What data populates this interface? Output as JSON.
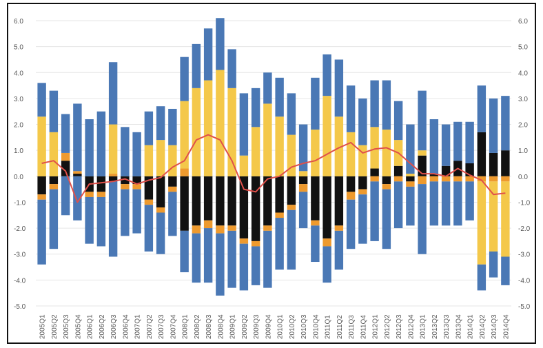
{
  "chart_data": {
    "type": "bar",
    "stacked": true,
    "categories": [
      "2005Q1",
      "2005Q2",
      "2005Q3",
      "2005Q4",
      "2006Q1",
      "2006Q2",
      "2006Q3",
      "2006Q4",
      "2007Q1",
      "2007Q2",
      "2007Q3",
      "2007Q4",
      "2008Q1",
      "2008Q2",
      "2008Q3",
      "2008Q4",
      "2009Q1",
      "2009Q2",
      "2009Q3",
      "2009Q4",
      "2010Q1",
      "2010Q2",
      "2010Q3",
      "2010Q4",
      "2011Q1",
      "2011Q2",
      "2011Q3",
      "2011Q4",
      "2012Q1",
      "2012Q2",
      "2012Q3",
      "2012Q4",
      "2013Q1",
      "2013Q2",
      "2013Q3",
      "2013Q4",
      "2014Q1",
      "2014Q2",
      "2014Q3",
      "2014Q4"
    ],
    "ylim": [
      -5.0,
      6.0
    ],
    "yticks": [
      "6.0",
      "5.0",
      "4.0",
      "3.0",
      "2.0",
      "1.0",
      "0.0",
      "-1.0",
      "-2.0",
      "-3.0",
      "-4.0",
      "-5.0"
    ],
    "ytick_values": [
      6,
      5,
      4,
      3,
      2,
      1,
      0,
      -1,
      -2,
      -3,
      -4,
      -5
    ],
    "right_axis_ticks": [
      "6.0",
      "5.0",
      "4.0",
      "3.0",
      "2.0",
      "1.0",
      "0.0",
      "-1.0",
      "-2.0",
      "-3.0",
      "-4.0",
      "-5.0"
    ],
    "grid": true,
    "bar_series": [
      {
        "color": "#111111",
        "values": [
          -0.7,
          -0.3,
          0.6,
          0.1,
          -0.6,
          -0.6,
          -0.2,
          -0.3,
          -0.3,
          -0.9,
          -1.2,
          -0.4,
          -2.1,
          -1.9,
          -1.7,
          -1.9,
          -1.9,
          -2.4,
          -2.5,
          -1.9,
          -1.4,
          -1.1,
          -0.3,
          -1.7,
          -2.4,
          -1.9,
          -0.6,
          -0.5,
          0.3,
          -0.3,
          0.4,
          -0.2,
          0.8,
          0.1,
          0.4,
          0.6,
          0.5,
          1.7,
          0.9,
          1.0
        ]
      },
      {
        "color": "#ee9a2e",
        "values": [
          -0.2,
          -0.2,
          0.3,
          0.1,
          -0.2,
          -0.2,
          0.1,
          -0.2,
          -0.2,
          -0.2,
          -0.2,
          -0.2,
          0.3,
          -0.3,
          -0.3,
          -0.3,
          -0.2,
          -0.2,
          -0.2,
          -0.2,
          -0.2,
          -0.2,
          -0.3,
          -0.2,
          -0.3,
          -0.2,
          -0.3,
          -0.2,
          -0.2,
          -0.2,
          -0.2,
          -0.2,
          -0.3,
          -0.2,
          -0.2,
          -0.2,
          -0.2,
          -0.2,
          -0.2,
          -0.2
        ]
      },
      {
        "color": "#f4c84a",
        "values": [
          2.3,
          1.7,
          0.0,
          0.0,
          0.0,
          0.0,
          1.9,
          0.0,
          0.0,
          1.2,
          1.4,
          1.2,
          2.6,
          3.4,
          3.7,
          4.1,
          3.4,
          0.8,
          1.9,
          2.8,
          2.3,
          1.6,
          0.2,
          1.8,
          3.1,
          2.3,
          1.7,
          1.2,
          1.6,
          1.8,
          1.0,
          0.1,
          0.2,
          0.0,
          0.0,
          0.0,
          0.0,
          -3.2,
          -2.7,
          -2.9
        ]
      },
      {
        "color": "#4a78b5",
        "values": [
          1.3,
          1.6,
          1.5,
          2.6,
          2.2,
          2.5,
          2.4,
          1.9,
          1.7,
          1.3,
          1.3,
          1.4,
          1.7,
          1.7,
          2.0,
          2.0,
          1.5,
          2.4,
          1.5,
          1.2,
          1.5,
          1.6,
          1.8,
          2.0,
          1.6,
          2.2,
          1.8,
          1.8,
          1.8,
          1.9,
          1.5,
          1.9,
          2.3,
          2.1,
          1.6,
          1.5,
          1.6,
          1.8,
          2.1,
          2.1
        ]
      },
      {
        "color": "#4a78b5",
        "values": [
          -2.5,
          -2.3,
          -1.5,
          -1.7,
          -1.8,
          -1.9,
          -2.9,
          -1.8,
          -1.7,
          -1.8,
          -1.6,
          -1.7,
          -1.6,
          -1.9,
          -2.1,
          -2.4,
          -2.2,
          -1.8,
          -1.5,
          -2.2,
          -2.0,
          -2.3,
          -1.4,
          -1.4,
          -1.4,
          -1.5,
          -1.9,
          -1.9,
          -2.3,
          -2.3,
          -1.8,
          -1.5,
          -2.7,
          -1.7,
          -1.7,
          -1.7,
          -1.5,
          -1.0,
          -1.0,
          -1.1
        ]
      }
    ],
    "line": {
      "color": "#e0504a",
      "values": [
        0.5,
        0.6,
        0.2,
        -1.0,
        -0.3,
        -0.25,
        -0.2,
        -0.1,
        -0.3,
        -0.15,
        -0.05,
        0.35,
        0.6,
        1.4,
        1.6,
        1.4,
        0.6,
        -0.5,
        -0.6,
        -0.1,
        0.0,
        0.35,
        0.5,
        0.6,
        0.85,
        1.1,
        1.3,
        0.9,
        1.05,
        1.1,
        0.9,
        0.5,
        0.1,
        0.1,
        0.0,
        0.3,
        0.05,
        -0.15,
        -0.7,
        -0.65
      ]
    }
  }
}
